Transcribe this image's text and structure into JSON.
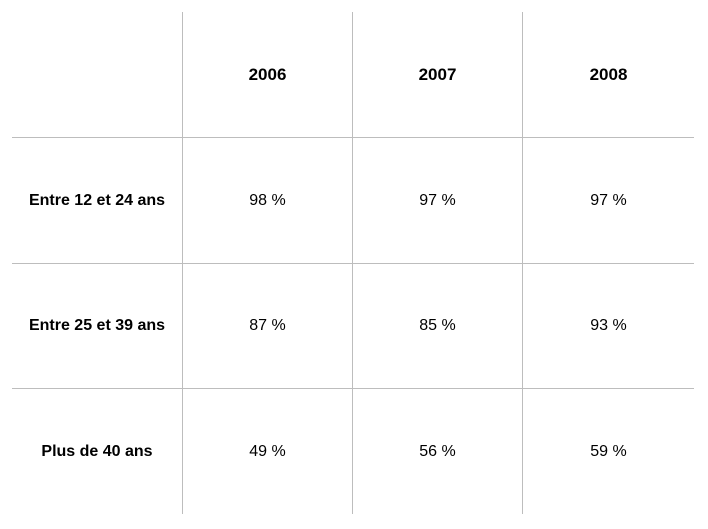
{
  "table": {
    "columns": [
      "",
      "2006",
      "2007",
      "2008"
    ],
    "rows": [
      {
        "label": "Entre 12 et 24 ans",
        "values": [
          "98 %",
          "97 %",
          "97 %"
        ]
      },
      {
        "label": "Entre 25 et 39 ans",
        "values": [
          "87 %",
          "85 %",
          "93 %"
        ]
      },
      {
        "label": "Plus de 40 ans",
        "values": [
          "49 %",
          "56 %",
          "59 %"
        ]
      }
    ]
  }
}
